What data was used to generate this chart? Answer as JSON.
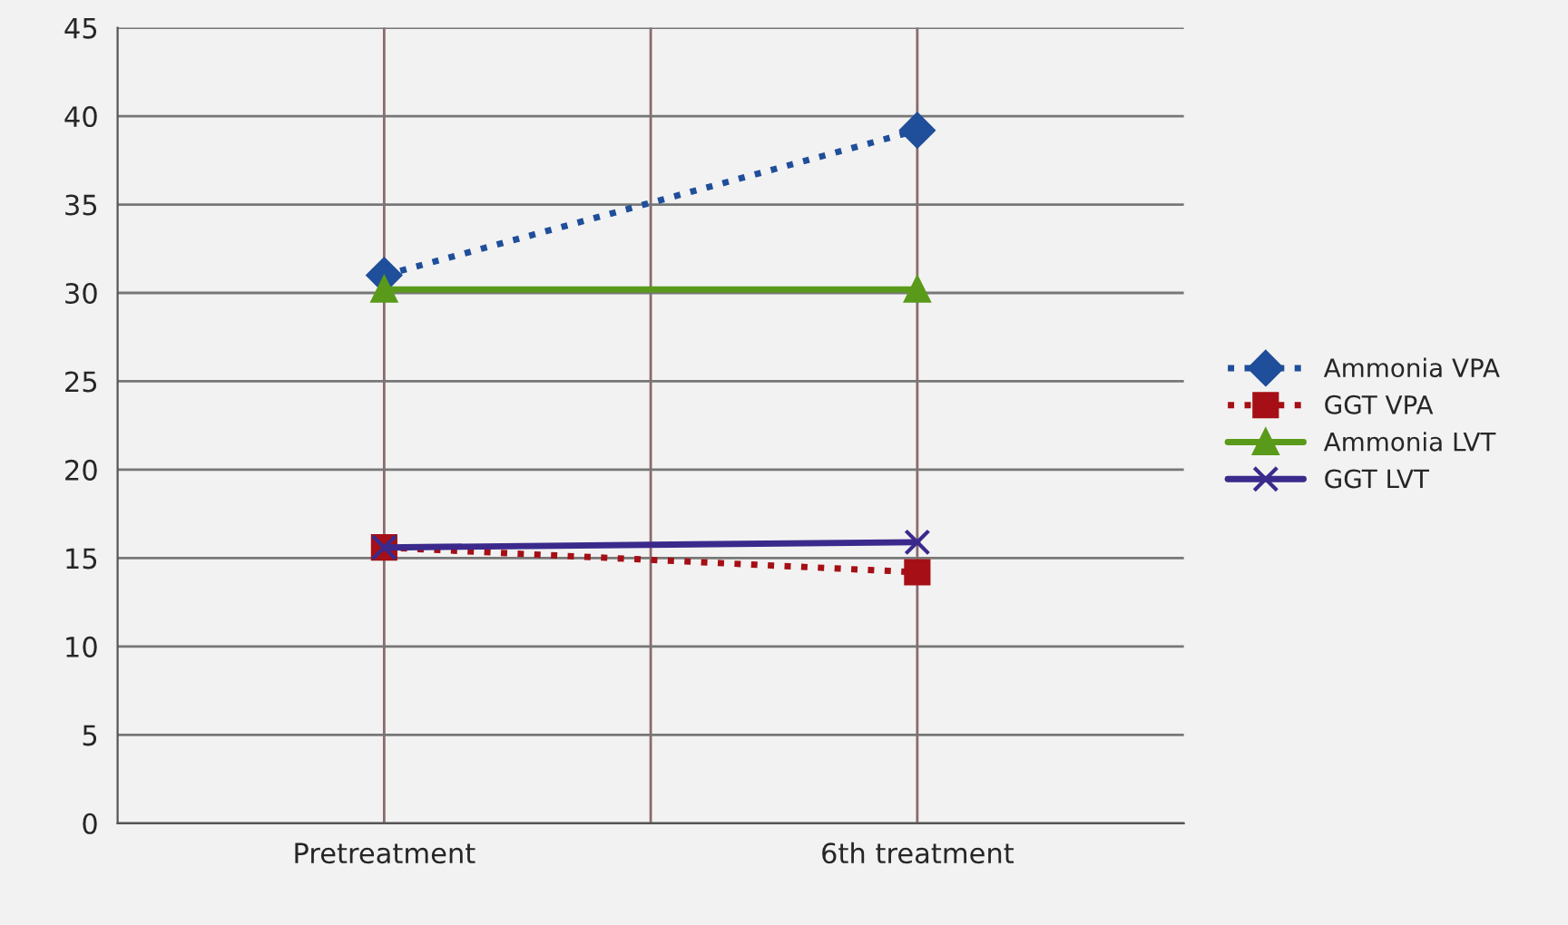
{
  "chart_data": {
    "type": "line",
    "categories": [
      "Pretreatment",
      "6th treatment"
    ],
    "series": [
      {
        "name": "Ammonia VPA",
        "color": "#1f4e9a",
        "values": [
          31,
          39.2
        ],
        "marker": "diamond",
        "line_style": "dotted"
      },
      {
        "name": "GGT VPA",
        "color": "#a50f15",
        "values": [
          15.6,
          14.2
        ],
        "marker": "square",
        "line_style": "dotted"
      },
      {
        "name": "Ammonia LVT",
        "color": "#5a9a1a",
        "values": [
          30.2,
          30.2
        ],
        "marker": "triangle",
        "line_style": "solid"
      },
      {
        "name": "GGT LVT",
        "color": "#3b2a8c",
        "values": [
          15.6,
          15.9
        ],
        "marker": "cross",
        "line_style": "solid"
      }
    ],
    "ylim": [
      0,
      45
    ],
    "yticks": [
      0,
      5,
      10,
      15,
      20,
      25,
      30,
      35,
      40,
      45
    ],
    "grid": true,
    "legend": "right"
  }
}
